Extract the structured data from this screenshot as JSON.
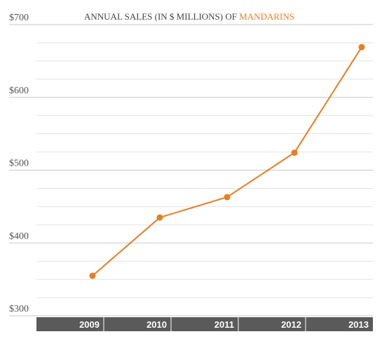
{
  "chart_data": {
    "type": "line",
    "title": "ANNUAL SALES (IN $ MILLIONS) OF",
    "title_highlight": "MANDARINS",
    "categories": [
      "2009",
      "2010",
      "2011",
      "2012",
      "2013"
    ],
    "series": [
      {
        "name": "Mandarins",
        "color": "#e67e22",
        "values": [
          355,
          435,
          463,
          524,
          669
        ]
      }
    ],
    "ylim": [
      300,
      700
    ],
    "yticks": [
      {
        "value": 300,
        "label": "$300"
      },
      {
        "value": 400,
        "label": "$400"
      },
      {
        "value": 500,
        "label": "$500"
      },
      {
        "value": 600,
        "label": "$600"
      },
      {
        "value": 700,
        "label": "$700"
      }
    ],
    "y_minor_ticks": [
      325,
      350,
      375,
      425,
      450,
      475,
      525,
      550,
      575,
      625,
      650,
      675
    ],
    "grid": true
  }
}
